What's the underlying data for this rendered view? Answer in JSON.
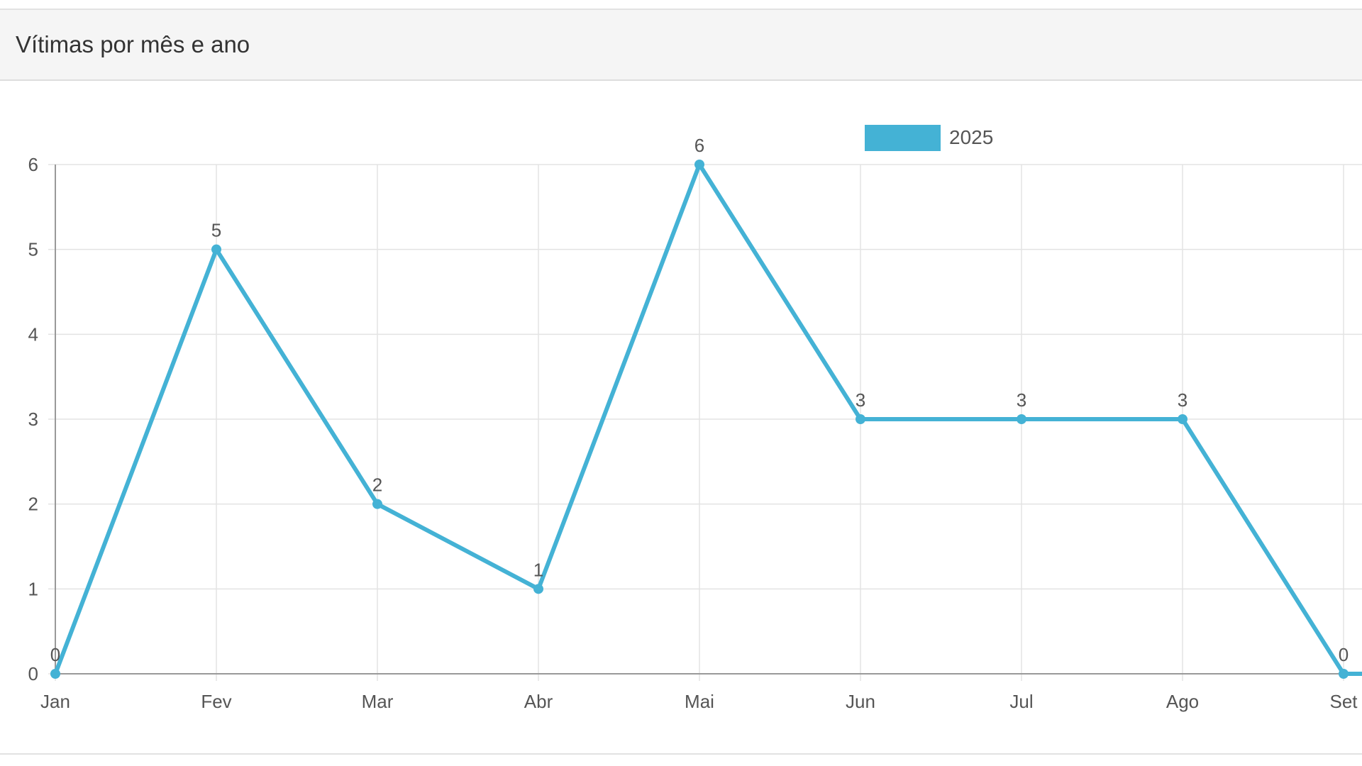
{
  "panel": {
    "title": "Vítimas por mês e ano"
  },
  "colors": {
    "series": "#44b2d5",
    "grid": "#e3e3e3",
    "axis": "#999999",
    "tick_text": "#555555",
    "label_text": "#555555"
  },
  "chart_data": {
    "type": "line",
    "title": "",
    "xlabel": "",
    "ylabel": "",
    "categories": [
      "Jan",
      "Fev",
      "Mar",
      "Abr",
      "Mai",
      "Jun",
      "Jul",
      "Ago",
      "Set"
    ],
    "series": [
      {
        "name": "2025",
        "values": [
          0,
          5,
          2,
          1,
          6,
          3,
          3,
          3,
          0
        ]
      }
    ],
    "ylim": [
      0,
      6
    ],
    "yticks": [
      "0",
      "1",
      "2",
      "3",
      "4",
      "5",
      "6"
    ],
    "grid": true,
    "legend": "top-center",
    "data_labels": true
  }
}
